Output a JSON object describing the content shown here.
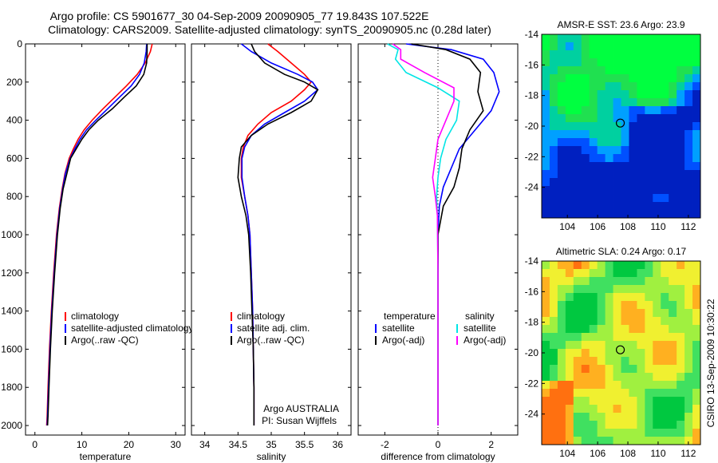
{
  "header": {
    "title_line1": "Argo profile: CS 5901677_30 04-Sep-2009 20090905_77 19.843S 107.522E",
    "title_line2": "Climatology: CARS2009. Satellite-adjusted climatology: synTS_20090905.nc (0.28d later)"
  },
  "side_label": "CSIRO 13-Sep-2009 10:30:22",
  "colors": {
    "climatology": "#ff0000",
    "satellite": "#0000ff",
    "argo": "#000000",
    "satellite_sal_diff": "#00e5e5",
    "argo_sal_diff": "#ff00ff"
  },
  "chart_data": [
    {
      "type": "line",
      "xlabel": "temperature",
      "xlim": [
        -2,
        32
      ],
      "xticks": [
        0,
        10,
        20,
        30
      ],
      "ylim": [
        0,
        2050
      ],
      "yticks": [
        0,
        200,
        400,
        600,
        800,
        1000,
        1200,
        1400,
        1600,
        1800,
        2000
      ],
      "y_reversed": true,
      "legend": [
        "climatology",
        "satellite-adjusted climatology",
        "Argo(..raw -QC)"
      ],
      "legend_position": "lower-right",
      "series": [
        {
          "name": "climatology",
          "color": "#ff0000",
          "x": [
            25.0,
            24.6,
            23.5,
            21.8,
            19.5,
            17.0,
            14.5,
            12.2,
            10.5,
            9.2,
            8.2,
            7.3,
            6.4,
            5.8,
            5.2,
            4.6,
            4.0,
            3.5,
            3.1,
            2.8,
            2.6,
            2.5
          ],
          "y": [
            0,
            40,
            100,
            160,
            220,
            280,
            340,
            400,
            450,
            500,
            550,
            600,
            680,
            760,
            860,
            1000,
            1200,
            1400,
            1600,
            1800,
            1950,
            2000
          ]
        },
        {
          "name": "satellite-adjusted climatology",
          "color": "#0000ff",
          "x": [
            23.8,
            23.7,
            23.3,
            22.3,
            20.5,
            18.0,
            15.5,
            13.0,
            11.0,
            9.6,
            8.5,
            7.5,
            6.5,
            5.9,
            5.3,
            4.7,
            4.1,
            3.6,
            3.2,
            2.9,
            2.7,
            2.6
          ],
          "y": [
            0,
            40,
            100,
            160,
            220,
            280,
            340,
            400,
            450,
            500,
            550,
            600,
            680,
            760,
            860,
            1000,
            1200,
            1400,
            1600,
            1800,
            1950,
            2000
          ]
        },
        {
          "name": "Argo(..raw -QC)",
          "color": "#000000",
          "x": [
            23.9,
            23.9,
            23.8,
            23.2,
            21.6,
            19.0,
            16.5,
            13.5,
            11.5,
            10.0,
            8.8,
            7.6,
            6.8,
            6.0,
            5.4,
            4.8,
            4.2,
            3.7,
            3.3,
            3.0,
            2.8,
            2.7
          ],
          "y": [
            0,
            40,
            100,
            160,
            220,
            280,
            340,
            400,
            450,
            500,
            550,
            600,
            680,
            760,
            860,
            1000,
            1200,
            1400,
            1600,
            1800,
            1950,
            2000
          ]
        }
      ]
    },
    {
      "type": "line",
      "xlabel": "salinity",
      "xlim": [
        33.8,
        36.2
      ],
      "xticks": [
        34,
        34.5,
        35,
        35.5,
        36
      ],
      "ylim": [
        0,
        2050
      ],
      "y_reversed": true,
      "legend": [
        "climatology",
        "satellite adj. clim.",
        "Argo(..raw -QC)"
      ],
      "legend_position": "lower-right",
      "annotation_line1": "Argo AUSTRALIA",
      "annotation_line2": "PI: Susan Wijffels",
      "series": [
        {
          "name": "climatology",
          "color": "#ff0000",
          "x": [
            34.95,
            35.1,
            35.3,
            35.5,
            35.6,
            35.5,
            35.3,
            35.0,
            34.8,
            34.65,
            34.58,
            34.55,
            34.55,
            34.6,
            34.65,
            34.68,
            34.7,
            34.72,
            34.73,
            34.74,
            34.74
          ],
          "y": [
            0,
            40,
            100,
            160,
            200,
            240,
            300,
            360,
            420,
            480,
            540,
            600,
            700,
            800,
            900,
            1000,
            1200,
            1400,
            1600,
            1800,
            2000
          ]
        },
        {
          "name": "satellite adj. clim.",
          "color": "#0000ff",
          "x": [
            34.55,
            34.7,
            35.0,
            35.4,
            35.62,
            35.7,
            35.5,
            35.2,
            34.9,
            34.7,
            34.6,
            34.56,
            34.56,
            34.6,
            34.65,
            34.68,
            34.7,
            34.72,
            34.73,
            34.74,
            34.74
          ],
          "y": [
            0,
            40,
            100,
            160,
            200,
            240,
            300,
            360,
            420,
            480,
            540,
            600,
            700,
            800,
            900,
            1000,
            1200,
            1400,
            1600,
            1800,
            2000
          ]
        },
        {
          "name": "Argo(..raw -QC)",
          "color": "#000000",
          "x": [
            34.7,
            34.75,
            34.9,
            35.2,
            35.5,
            35.7,
            35.6,
            35.3,
            34.95,
            34.7,
            34.55,
            34.52,
            34.5,
            34.55,
            34.62,
            34.66,
            34.69,
            34.71,
            34.73,
            34.74,
            34.74
          ],
          "y": [
            0,
            40,
            100,
            160,
            200,
            240,
            300,
            360,
            420,
            480,
            540,
            600,
            700,
            800,
            900,
            1000,
            1200,
            1400,
            1600,
            1800,
            2000
          ]
        }
      ]
    },
    {
      "type": "line",
      "xlabel": "difference from climatology",
      "xlim": [
        -3,
        3
      ],
      "xticks": [
        -2,
        0,
        2
      ],
      "ylim": [
        0,
        2050
      ],
      "y_reversed": true,
      "zero_line": "dotted",
      "legend_heading_left": "temperature",
      "legend_heading_right": "salinity",
      "legend_left": [
        "satellite",
        "Argo(-adj)"
      ],
      "legend_right": [
        "satellite",
        "Argo(-adj)"
      ],
      "legend_position": "lower",
      "series": [
        {
          "name": "temperature satellite",
          "color": "#0000ff",
          "x": [
            -1.2,
            0.5,
            1.7,
            2.1,
            2.3,
            2.0,
            1.4,
            0.8,
            0.5,
            0.2,
            0.05,
            0.0,
            0.0,
            0.0,
            0.0
          ],
          "y": [
            0,
            30,
            80,
            150,
            250,
            350,
            450,
            550,
            650,
            750,
            850,
            1000,
            1400,
            1800,
            2000
          ]
        },
        {
          "name": "temperature Argo(-adj)",
          "color": "#000000",
          "x": [
            -1.0,
            0.3,
            1.2,
            1.6,
            1.5,
            1.7,
            1.2,
            0.9,
            0.8,
            0.6,
            0.2,
            0.0,
            0.0,
            0.0,
            0.0
          ],
          "y": [
            0,
            30,
            80,
            150,
            250,
            350,
            450,
            550,
            650,
            750,
            850,
            1000,
            1400,
            1800,
            2000
          ]
        },
        {
          "name": "salinity satellite",
          "color": "#00e5e5",
          "x": [
            -1.9,
            -1.5,
            -1.6,
            -1.2,
            0.0,
            0.8,
            0.7,
            0.3,
            0.1,
            0.0,
            -0.05,
            -0.02,
            0.0,
            0.0,
            0.0
          ],
          "y": [
            0,
            30,
            80,
            150,
            230,
            300,
            400,
            500,
            600,
            700,
            800,
            900,
            1200,
            1600,
            2000
          ]
        },
        {
          "name": "salinity Argo(-adj)",
          "color": "#ff00ff",
          "x": [
            -1.7,
            -1.4,
            -1.4,
            -0.5,
            0.6,
            0.6,
            0.3,
            0.0,
            -0.1,
            -0.2,
            -0.1,
            -0.02,
            0.0,
            0.0,
            0.0
          ],
          "y": [
            0,
            30,
            80,
            150,
            230,
            300,
            400,
            500,
            600,
            700,
            800,
            900,
            1200,
            1600,
            2000
          ]
        }
      ]
    },
    {
      "type": "heatmap",
      "title": "AMSR-E SST: 23.6 Argo: 23.9",
      "xlim": [
        102.3,
        112.8
      ],
      "xticks": [
        104,
        106,
        108,
        110,
        112
      ],
      "ylim": [
        -26,
        -14
      ],
      "yticks": [
        -14,
        -16,
        -18,
        -20,
        -22,
        -24
      ],
      "marker": {
        "x": 107.5,
        "y": -19.8
      },
      "colors": [
        "#00ff40",
        "#20e050",
        "#00d0a0",
        "#00a0ff",
        "#0050ff",
        "#0020c0"
      ]
    },
    {
      "type": "heatmap",
      "title": "Altimetric SLA: 0.24 Argo: 0.17",
      "xlim": [
        102.3,
        112.8
      ],
      "xticks": [
        104,
        106,
        108,
        110,
        112
      ],
      "ylim": [
        -26,
        -14
      ],
      "yticks": [
        -14,
        -16,
        -18,
        -20,
        -22,
        -24
      ],
      "marker": {
        "x": 107.5,
        "y": -19.8
      },
      "colors": [
        "#00c840",
        "#40e060",
        "#a0f040",
        "#f0f030",
        "#ffb020",
        "#ff7010"
      ]
    }
  ]
}
